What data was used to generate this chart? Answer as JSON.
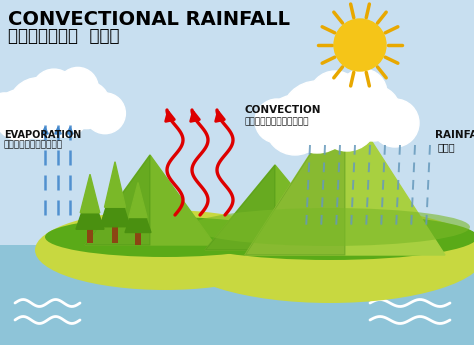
{
  "title": "CONVECTIONAL RAINFALL",
  "subtitle": "ಸಾಮಾನ್ಯ  ಮಳೆ",
  "bg_color": "#c8dff0",
  "sky_color": "#c8dff0",
  "water_color": "#8ec4d8",
  "land_light": "#a8d040",
  "land_mid": "#7ab828",
  "land_dark": "#3e8a10",
  "land_yellow": "#c8d840",
  "bush_green": "#5aaa18",
  "evap_label": "EVAPORATION",
  "evap_sublabel": "ಆವಿಯಾಗುವಿಕೆ",
  "conv_label": "CONVECTION",
  "conv_sublabel": "ಪ್ರತ್ಯಾವರ್ತನ",
  "rain_label": "RAINFALL",
  "rain_sublabel": "ಮಳೆ",
  "label_color": "#111111",
  "arrow_red": "#dd0000",
  "arrow_blue": "#4488cc",
  "rain_color": "#6699bb",
  "sun_color": "#f5c518",
  "sun_ray_color": "#e8a800",
  "tree_trunk": "#8B4513",
  "tree_dark": "#4a9010"
}
